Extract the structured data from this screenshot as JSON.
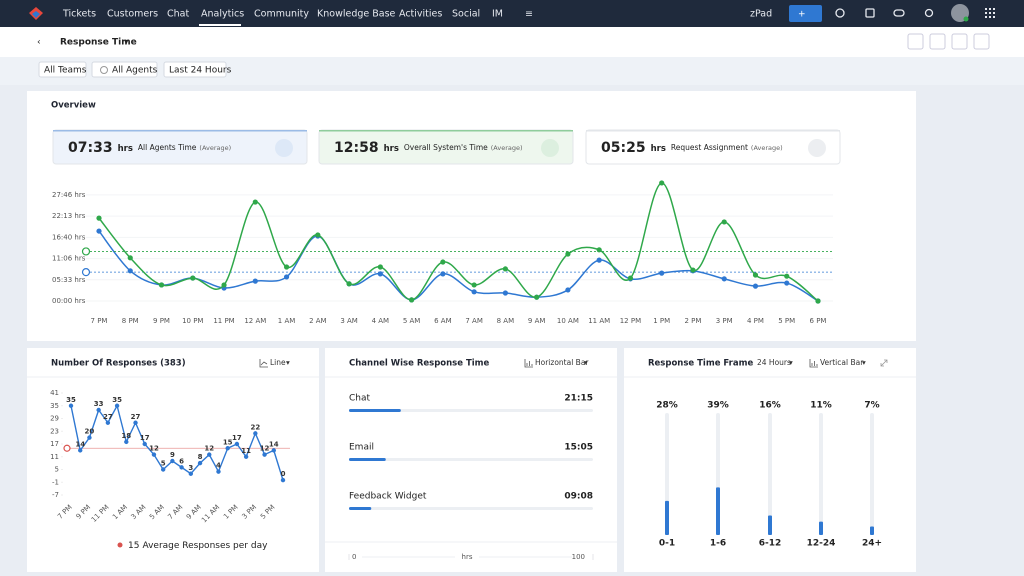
{
  "nav": {
    "items": [
      "Tickets",
      "Customers",
      "Chat",
      "Analytics",
      "Community",
      "Knowledge Base",
      "Activities",
      "Social",
      "IM"
    ],
    "workspace": "zPad"
  },
  "header": {
    "title": "Response Time"
  },
  "filters": [
    "All Teams",
    "All Agents",
    "Last 24 Hours"
  ],
  "overview_cards": [
    {
      "value": "07:33",
      "unit": "hrs"
    },
    {
      "value": "12:58",
      "unit": "hrs"
    },
    {
      "value": "05:25",
      "unit": "hrs",
      "label": "Request Assignment",
      "note": "(Average)"
    }
  ],
  "card_note": "(Average)",
  "chart_data": [
    {
      "type": "line",
      "title": "Overview",
      "categories": [
        "7 PM",
        "8 PM",
        "9 PM",
        "10 PM",
        "11 PM",
        "12 AM",
        "1 AM",
        "2 AM",
        "3 AM",
        "4 AM",
        "5 AM",
        "6 AM",
        "7 AM",
        "8 AM",
        "9 AM",
        "10 AM",
        "11 AM",
        "12 PM",
        "1 PM",
        "2 PM",
        "3 PM",
        "4 PM",
        "5 PM",
        "6 PM"
      ],
      "series": [
        {
          "name": "All Agents Time",
          "color": "#2f78d2",
          "average": 7.55,
          "values": [
            18.3,
            7.9,
            4.2,
            6.0,
            3.4,
            5.2,
            6.3,
            17.0,
            4.5,
            7.1,
            0.3,
            7.1,
            2.4,
            2.1,
            1.0,
            2.9,
            10.7,
            5.8,
            7.3,
            7.9,
            5.8,
            3.9,
            4.7,
            0
          ]
        },
        {
          "name": "Overall System's Time",
          "color": "#2fa84a",
          "average": 12.97,
          "values": [
            21.7,
            11.3,
            4.2,
            6.0,
            4.2,
            25.9,
            8.9,
            17.3,
            4.5,
            8.9,
            0.3,
            10.2,
            4.2,
            8.4,
            1.0,
            12.3,
            13.4,
            6.0,
            30.9,
            8.1,
            20.7,
            6.8,
            6.5,
            0
          ]
        }
      ],
      "ylim": [
        0,
        31
      ],
      "yticks": [
        {
          "value": 0,
          "label": "00:00 hrs"
        },
        {
          "value": 5.55,
          "label": "05:33 hrs"
        },
        {
          "value": 11.1,
          "label": "11:06 hrs"
        },
        {
          "value": 16.67,
          "label": "16:40 hrs"
        },
        {
          "value": 22.22,
          "label": "22:13 hrs"
        },
        {
          "value": 27.77,
          "label": "27:46 hrs"
        }
      ],
      "grid": true
    },
    {
      "type": "line",
      "title": "Number Of Responses (383)",
      "view": "Line",
      "categories": [
        "7 PM",
        null,
        "9 PM",
        null,
        "11 PM",
        null,
        "1 AM",
        null,
        "3 AM",
        null,
        "5 AM",
        null,
        "7 AM",
        null,
        "9 AM",
        null,
        "11 AM",
        null,
        "1 PM",
        null,
        "3 PM",
        null,
        "5 PM",
        null
      ],
      "series": [
        {
          "color": "#2f78d2",
          "values": [
            35,
            14,
            20,
            33,
            27,
            35,
            18,
            27,
            17,
            12,
            5,
            9,
            6,
            3,
            8,
            12,
            4,
            15,
            17,
            11,
            22,
            12,
            14,
            0
          ]
        }
      ],
      "average": 15,
      "average_label": "Average Responses per day",
      "average_color": "#d9534f",
      "ylim": [
        -7,
        41
      ],
      "yticks": [
        41,
        35,
        29,
        23,
        17,
        11,
        5,
        -1,
        -7
      ]
    },
    {
      "type": "hbar",
      "title": "Channel Wise Response Time",
      "view": "Horizontal Bar",
      "categories": [
        "Chat",
        "Email",
        "Feedback Widget"
      ],
      "values": [
        21.25,
        15.08,
        9.13
      ],
      "value_labels": [
        "21:15",
        "15:05",
        "09:08"
      ],
      "color": "#2f78d2",
      "xlim": [
        0,
        100
      ],
      "xticks": [
        0,
        100
      ],
      "xlabel": "hrs"
    },
    {
      "type": "bar",
      "title": "Response Time Frame",
      "period": "24 Hours",
      "view": "Vertical Bar",
      "categories": [
        "0-1",
        "1-6",
        "6-12",
        "12-24",
        "24+"
      ],
      "values": [
        28,
        39,
        16,
        11,
        7
      ],
      "value_labels": [
        "28%",
        "39%",
        "16%",
        "11%",
        "7%"
      ],
      "color": "#2f78d2",
      "ylim": [
        0,
        100
      ]
    }
  ]
}
